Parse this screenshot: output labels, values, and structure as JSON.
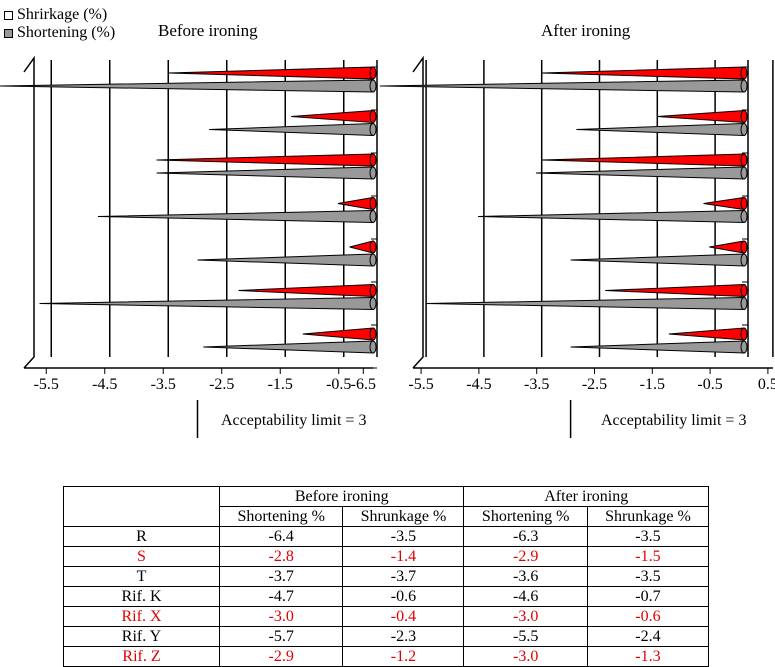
{
  "legend": [
    {
      "label": "Shrirkage (%)",
      "swatch": "white"
    },
    {
      "label": "Shortening (%)",
      "swatch": "gray"
    }
  ],
  "limit_label": "Acceptability limit = 3",
  "colors": {
    "shrinkage": "#ff0000",
    "shortening": "#999999",
    "highlight_text": "#e00000"
  },
  "chart_data": [
    {
      "type": "bar",
      "title": "Before ironing",
      "orientation": "horizontal-3d-cone",
      "categories": [
        "R",
        "S",
        "T",
        "Rif. K",
        "Rif. X",
        "Rif. Y",
        "Rif. Z"
      ],
      "series": [
        {
          "name": "Shrirkage (%)",
          "values": [
            -3.5,
            -1.4,
            -3.7,
            -0.6,
            -0.4,
            -2.3,
            -1.2
          ]
        },
        {
          "name": "Shortening (%)",
          "values": [
            -6.4,
            -2.8,
            -3.7,
            -4.7,
            -3.0,
            -5.7,
            -2.9
          ]
        }
      ],
      "xticks": [
        "-6.5",
        "-5.5",
        "-4.5",
        "-3.5",
        "-2.5",
        "-1.5",
        "-0.5"
      ],
      "xlim": [
        -6.5,
        0
      ],
      "reference_line": -3,
      "grid": true
    },
    {
      "type": "bar",
      "title": "After ironing",
      "orientation": "horizontal-3d-cone",
      "categories": [
        "R",
        "S",
        "T",
        "Rif. K",
        "Rif. X",
        "Rif. Y",
        "Rif. Z"
      ],
      "series": [
        {
          "name": "Shrirkage (%)",
          "values": [
            -3.5,
            -1.5,
            -3.5,
            -0.7,
            -0.6,
            -2.4,
            -1.3
          ]
        },
        {
          "name": "Shortening (%)",
          "values": [
            -6.3,
            -2.9,
            -3.6,
            -4.6,
            -3.0,
            -5.5,
            -3.0
          ]
        }
      ],
      "xticks": [
        "-6.5",
        "-5.5",
        "-4.5",
        "-3.5",
        "-2.5",
        "-1.5",
        "-0.5",
        "0.5"
      ],
      "xlim": [
        -6.5,
        0.5
      ],
      "reference_line": -3,
      "grid": true
    },
    {
      "type": "table",
      "group_headers": [
        "Before ironing",
        "After ironing"
      ],
      "columns": [
        "Shortening %",
        "Shrunkage %",
        "Shortening %",
        "Shrunkage %"
      ],
      "rows": [
        {
          "label": "R",
          "cells": [
            "-6.4",
            "-3.5",
            "-6.3",
            "-3.5"
          ],
          "highlight": false
        },
        {
          "label": "S",
          "cells": [
            "-2.8",
            "-1.4",
            "-2.9",
            "-1.5"
          ],
          "highlight": true
        },
        {
          "label": "T",
          "cells": [
            "-3.7",
            "-3.7",
            "-3.6",
            "-3.5"
          ],
          "highlight": false
        },
        {
          "label": "Rif. K",
          "cells": [
            "-4.7",
            "-0.6",
            "-4.6",
            "-0.7"
          ],
          "highlight": false
        },
        {
          "label": "Rif. X",
          "cells": [
            "-3.0",
            "-0.4",
            "-3.0",
            "-0.6"
          ],
          "highlight": true
        },
        {
          "label": "Rif. Y",
          "cells": [
            "-5.7",
            "-2.3",
            "-5.5",
            "-2.4"
          ],
          "highlight": false
        },
        {
          "label": "Rif. Z",
          "cells": [
            "-2.9",
            "-1.2",
            "-3.0",
            "-1.3"
          ],
          "highlight": true
        }
      ]
    }
  ]
}
